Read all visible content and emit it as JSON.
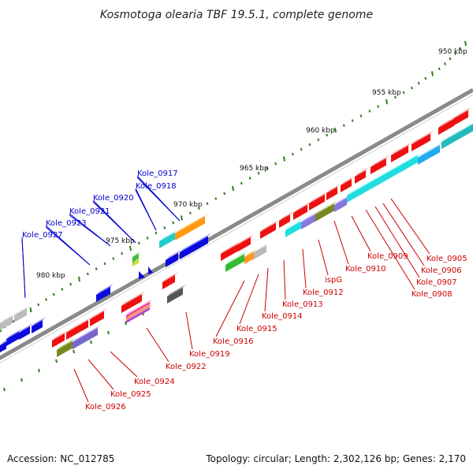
{
  "title": "Kosmotoga olearia TBF 19.5.1, complete genome",
  "footer": {
    "accession": "Accession: NC_012785",
    "summary": "Topology: circular; Length: 2,302,126 bp; Genes: 2,170"
  },
  "ticks": [
    "950 kbp",
    "955 kbp",
    "960 kbp",
    "965 kbp",
    "970 kbp",
    "975 kbp",
    "980 kbp"
  ],
  "colors": {
    "forward_label": "#0000cc",
    "reverse_label": "#cc0000",
    "backbone": "#8a8a8a",
    "tick": "#2e7d1e"
  },
  "genes_forward": [
    "Kole_0917",
    "Kole_0918",
    "Kole_0920",
    "Kole_0921",
    "Kole_0923",
    "Kole_0927"
  ],
  "genes_reverse": [
    "Kole_0905",
    "Kole_0906",
    "Kole_0907",
    "Kole_0908",
    "Kole_0909",
    "Kole_0910",
    "ispG",
    "Kole_0912",
    "Kole_0913",
    "Kole_0914",
    "Kole_0915",
    "Kole_0916",
    "Kole_0919",
    "Kole_0922",
    "Kole_0924",
    "Kole_0925",
    "Kole_0926"
  ]
}
